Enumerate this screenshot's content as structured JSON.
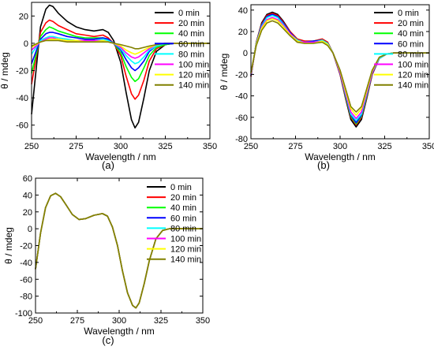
{
  "colors": {
    "series": [
      "#000000",
      "#ff0000",
      "#00ff00",
      "#0000ff",
      "#00ffff",
      "#ff00ff",
      "#ffff00",
      "#808000"
    ],
    "axis": "#000000"
  },
  "chart_data": [
    {
      "type": "line",
      "panel_label": "(a)",
      "xlabel": "Wavelength / nm",
      "ylabel": "θ / mdeg",
      "xlim": [
        250,
        350
      ],
      "ylim": [
        -70,
        30
      ],
      "xticks": [
        250,
        275,
        300,
        325,
        350
      ],
      "yticks": [
        -60,
        -40,
        -20,
        0,
        20
      ],
      "legend_position": "top-right",
      "grid": false,
      "x": [
        250,
        255,
        258,
        260,
        262,
        265,
        270,
        275,
        280,
        285,
        290,
        293,
        296,
        300,
        303,
        306,
        308,
        310,
        313,
        316,
        320,
        325,
        330,
        340,
        350
      ],
      "series": [
        {
          "name": "0 min",
          "values": [
            -52,
            12,
            25,
            28,
            27,
            22,
            16,
            12,
            10,
            9,
            10,
            8,
            2,
            -14,
            -36,
            -56,
            -62,
            -58,
            -40,
            -20,
            -6,
            -1,
            0,
            0,
            0
          ]
        },
        {
          "name": "20 min",
          "values": [
            -30,
            8,
            15,
            17,
            16,
            13,
            10,
            7,
            6,
            5,
            6,
            4,
            0,
            -9,
            -24,
            -37,
            -41,
            -38,
            -27,
            -13,
            -4,
            -1,
            0,
            0,
            0
          ]
        },
        {
          "name": "40 min",
          "values": [
            -22,
            5,
            10,
            12,
            11,
            9,
            7,
            5,
            4,
            4,
            4,
            3,
            0,
            -7,
            -17,
            -25,
            -28,
            -26,
            -18,
            -9,
            -3,
            -1,
            0,
            0,
            0
          ]
        },
        {
          "name": "60 min",
          "values": [
            -15,
            3,
            7,
            8,
            8,
            7,
            5,
            4,
            3,
            3,
            4,
            3,
            0,
            -5,
            -12,
            -18,
            -20,
            -18,
            -13,
            -6,
            -2,
            0,
            0,
            0,
            0
          ]
        },
        {
          "name": "80 min",
          "values": [
            -8,
            2,
            4,
            5,
            5,
            4,
            3,
            2,
            2,
            2,
            3,
            2,
            0,
            -4,
            -9,
            -13,
            -15,
            -14,
            -10,
            -5,
            -2,
            0,
            0,
            0,
            0
          ]
        },
        {
          "name": "100 min",
          "values": [
            -5,
            1,
            3,
            4,
            4,
            3,
            2,
            2,
            2,
            2,
            2,
            1,
            0,
            -3,
            -7,
            -10,
            -11,
            -10,
            -7,
            -4,
            -1,
            0,
            0,
            0,
            0
          ]
        },
        {
          "name": "120 min",
          "values": [
            -3,
            1,
            2,
            3,
            3,
            3,
            2,
            2,
            1,
            1,
            2,
            1,
            0,
            -2,
            -5,
            -7,
            -8,
            -7,
            -5,
            -3,
            -1,
            0,
            0,
            0,
            0
          ]
        },
        {
          "name": "140 min",
          "values": [
            -2,
            1,
            2,
            2,
            2,
            2,
            1,
            1,
            1,
            1,
            1,
            1,
            0,
            -1,
            -2,
            -3,
            -4,
            -4,
            -3,
            -2,
            -1,
            0,
            0,
            0,
            0
          ]
        }
      ]
    },
    {
      "type": "line",
      "panel_label": "(b)",
      "xlabel": "Wavelength / nm",
      "ylabel": "θ / mdeg",
      "xlim": [
        250,
        350
      ],
      "ylim": [
        -80,
        45
      ],
      "xticks": [
        250,
        275,
        300,
        325,
        350
      ],
      "yticks": [
        -80,
        -60,
        -40,
        -20,
        0,
        20,
        40
      ],
      "legend_position": "top-right",
      "grid": false,
      "x": [
        250,
        253,
        256,
        259,
        262,
        265,
        268,
        272,
        276,
        280,
        285,
        290,
        293,
        296,
        300,
        303,
        306,
        309,
        312,
        315,
        318,
        322,
        326,
        330,
        340,
        350
      ],
      "series": [
        {
          "name": "0 min",
          "values": [
            -22,
            10,
            28,
            36,
            38,
            36,
            30,
            20,
            13,
            11,
            11,
            13,
            10,
            0,
            -20,
            -42,
            -62,
            -69,
            -62,
            -42,
            -20,
            -5,
            -1,
            0,
            0,
            0
          ]
        },
        {
          "name": "20 min",
          "values": [
            -22,
            10,
            27,
            35,
            37,
            35,
            29,
            20,
            13,
            11,
            11,
            13,
            10,
            0,
            -20,
            -41,
            -60,
            -67,
            -60,
            -41,
            -20,
            -5,
            -1,
            0,
            0,
            0
          ]
        },
        {
          "name": "40 min",
          "values": [
            -21,
            9,
            26,
            34,
            36,
            34,
            28,
            19,
            12,
            10,
            11,
            12,
            9,
            0,
            -19,
            -40,
            -59,
            -66,
            -59,
            -40,
            -19,
            -5,
            -1,
            0,
            0,
            0
          ]
        },
        {
          "name": "60 min",
          "values": [
            -21,
            9,
            26,
            34,
            36,
            34,
            28,
            19,
            12,
            10,
            11,
            12,
            9,
            0,
            -19,
            -39,
            -58,
            -65,
            -58,
            -39,
            -19,
            -5,
            -1,
            0,
            0,
            0
          ]
        },
        {
          "name": "80 min",
          "values": [
            -20,
            9,
            25,
            33,
            35,
            33,
            27,
            18,
            12,
            10,
            10,
            12,
            9,
            0,
            -18,
            -38,
            -57,
            -63,
            -57,
            -38,
            -18,
            -5,
            -1,
            0,
            0,
            0
          ]
        },
        {
          "name": "100 min",
          "values": [
            -20,
            8,
            24,
            31,
            33,
            31,
            26,
            18,
            11,
            10,
            10,
            11,
            8,
            0,
            -18,
            -37,
            -55,
            -61,
            -55,
            -37,
            -18,
            -4,
            -1,
            0,
            0,
            0
          ]
        },
        {
          "name": "120 min",
          "values": [
            -19,
            8,
            23,
            30,
            32,
            30,
            25,
            17,
            11,
            9,
            9,
            11,
            8,
            0,
            -17,
            -35,
            -52,
            -58,
            -52,
            -35,
            -17,
            -4,
            -1,
            0,
            0,
            0
          ]
        },
        {
          "name": "140 min",
          "values": [
            -18,
            7,
            21,
            28,
            30,
            28,
            23,
            16,
            10,
            9,
            9,
            10,
            7,
            0,
            -16,
            -33,
            -50,
            -55,
            -50,
            -33,
            -16,
            -4,
            -1,
            0,
            0,
            0
          ]
        }
      ]
    },
    {
      "type": "line",
      "panel_label": "(c)",
      "xlabel": "Wavelength / nm",
      "ylabel": "θ / mdeg",
      "xlim": [
        250,
        350
      ],
      "ylim": [
        -100,
        60
      ],
      "xticks": [
        250,
        275,
        300,
        325,
        350
      ],
      "yticks": [
        -100,
        -80,
        -60,
        -40,
        -20,
        0,
        20,
        40,
        60
      ],
      "legend_position": "top-right",
      "grid": false,
      "x": [
        250,
        253,
        256,
        259,
        262,
        265,
        268,
        272,
        276,
        280,
        285,
        290,
        293,
        296,
        299,
        302,
        305,
        308,
        310,
        312,
        315,
        318,
        322,
        326,
        330,
        340,
        350
      ],
      "series": [
        {
          "name": "0 min",
          "values": [
            -48,
            -5,
            25,
            39,
            42,
            38,
            29,
            17,
            11,
            12,
            16,
            18,
            15,
            2,
            -20,
            -50,
            -76,
            -91,
            -94,
            -88,
            -65,
            -38,
            -12,
            -2,
            0,
            0,
            0
          ]
        },
        {
          "name": "20 min",
          "values": [
            -48,
            -5,
            25,
            39,
            42,
            38,
            29,
            17,
            11,
            12,
            16,
            18,
            15,
            2,
            -20,
            -50,
            -76,
            -91,
            -94,
            -88,
            -65,
            -38,
            -12,
            -2,
            0,
            0,
            0
          ]
        },
        {
          "name": "40 min",
          "values": [
            -48,
            -5,
            25,
            39,
            42,
            38,
            29,
            17,
            11,
            12,
            16,
            18,
            15,
            2,
            -20,
            -50,
            -76,
            -91,
            -94,
            -88,
            -65,
            -38,
            -12,
            -2,
            0,
            0,
            0
          ]
        },
        {
          "name": "60 min",
          "values": [
            -48,
            -5,
            25,
            39,
            42,
            38,
            29,
            17,
            11,
            12,
            16,
            18,
            15,
            2,
            -20,
            -50,
            -76,
            -91,
            -94,
            -88,
            -65,
            -38,
            -12,
            -2,
            0,
            0,
            0
          ]
        },
        {
          "name": "80 min",
          "values": [
            -48,
            -5,
            25,
            39,
            42,
            38,
            29,
            17,
            11,
            12,
            16,
            18,
            15,
            2,
            -20,
            -50,
            -76,
            -91,
            -94,
            -88,
            -65,
            -38,
            -12,
            -2,
            0,
            0,
            0
          ]
        },
        {
          "name": "100 min",
          "values": [
            -48,
            -5,
            25,
            39,
            42,
            38,
            29,
            17,
            11,
            12,
            16,
            18,
            15,
            2,
            -20,
            -50,
            -76,
            -91,
            -94,
            -88,
            -65,
            -38,
            -12,
            -2,
            0,
            0,
            0
          ]
        },
        {
          "name": "120 min",
          "values": [
            -48,
            -5,
            25,
            39,
            42,
            38,
            29,
            17,
            11,
            12,
            16,
            18,
            15,
            2,
            -20,
            -50,
            -76,
            -91,
            -94,
            -88,
            -65,
            -38,
            -12,
            -2,
            0,
            0,
            0
          ]
        },
        {
          "name": "140 min",
          "values": [
            -48,
            -5,
            25,
            39,
            42,
            38,
            29,
            17,
            11,
            12,
            16,
            18,
            15,
            2,
            -20,
            -50,
            -76,
            -91,
            -94,
            -88,
            -65,
            -38,
            -12,
            -2,
            0,
            0,
            0
          ]
        }
      ]
    }
  ]
}
